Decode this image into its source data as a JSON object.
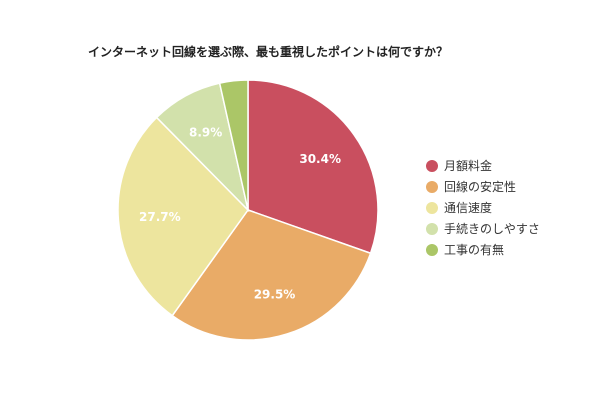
{
  "chart_data": {
    "type": "pie",
    "title": "インターネット回線を選ぶ際、最も重視したポイントは何ですか？",
    "slices": [
      {
        "name": "月額料金",
        "value": 30.4,
        "label": "30.4%",
        "color": "#c94f5f"
      },
      {
        "name": "回線の安定性",
        "value": 29.5,
        "label": "29.5%",
        "color": "#e9ab67"
      },
      {
        "name": "通信速度",
        "value": 27.7,
        "label": "27.7%",
        "color": "#ede59e"
      },
      {
        "name": "手続きのしやすさ",
        "value": 8.9,
        "label": "8.9%",
        "color": "#d2e1ab"
      },
      {
        "name": "工事の有無",
        "value": 3.5,
        "label": "",
        "color": "#abc667"
      }
    ],
    "legend_position": "right",
    "start_angle": "top-clockwise"
  }
}
